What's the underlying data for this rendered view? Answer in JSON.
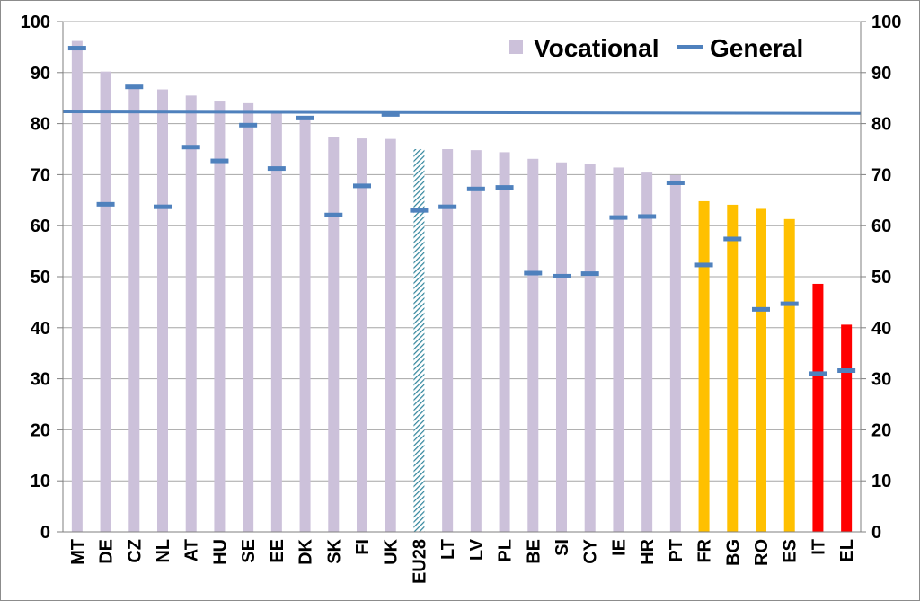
{
  "chart_data": {
    "type": "bar",
    "categories": [
      "MT",
      "DE",
      "CZ",
      "NL",
      "AT",
      "HU",
      "SE",
      "EE",
      "DK",
      "SK",
      "FI",
      "UK",
      "EU28",
      "LT",
      "LV",
      "PL",
      "BE",
      "SI",
      "CY",
      "IE",
      "HR",
      "PT",
      "FR",
      "BG",
      "RO",
      "ES",
      "IT",
      "EL"
    ],
    "series": [
      {
        "name": "Vocational",
        "kind": "bar",
        "values": [
          96.2,
          90.2,
          87.0,
          86.7,
          85.5,
          84.5,
          84.0,
          82.3,
          81.0,
          77.3,
          77.1,
          77.0,
          75.0,
          75.0,
          74.8,
          74.4,
          73.1,
          72.4,
          72.1,
          71.4,
          70.4,
          69.9,
          64.8,
          64.1,
          63.3,
          61.3,
          48.6,
          40.6
        ],
        "colors": [
          "#ccc1da",
          "#ccc1da",
          "#ccc1da",
          "#ccc1da",
          "#ccc1da",
          "#ccc1da",
          "#ccc1da",
          "#ccc1da",
          "#ccc1da",
          "#ccc1da",
          "#ccc1da",
          "#ccc1da",
          "#31859c",
          "#ccc1da",
          "#ccc1da",
          "#ccc1da",
          "#ccc1da",
          "#ccc1da",
          "#ccc1da",
          "#ccc1da",
          "#ccc1da",
          "#ccc1da",
          "#ffc000",
          "#ffc000",
          "#ffc000",
          "#ffc000",
          "#ff0000",
          "#ff0000"
        ],
        "hatched": [
          false,
          false,
          false,
          false,
          false,
          false,
          false,
          false,
          false,
          false,
          false,
          false,
          true,
          false,
          false,
          false,
          false,
          false,
          false,
          false,
          false,
          false,
          false,
          false,
          false,
          false,
          false,
          false
        ]
      },
      {
        "name": "General",
        "kind": "marker",
        "values": [
          94.8,
          64.2,
          87.2,
          63.7,
          75.4,
          72.7,
          79.7,
          71.2,
          81.1,
          62.1,
          67.8,
          81.8,
          63.0,
          63.7,
          67.2,
          67.5,
          50.7,
          50.1,
          50.6,
          61.6,
          61.8,
          68.4,
          52.3,
          57.4,
          43.6,
          44.7,
          31.0,
          31.6
        ],
        "color": "#4f81bd"
      }
    ],
    "reference_line": {
      "from": 82.3,
      "to": 82.0,
      "color": "#4f81bd"
    },
    "ylim": [
      0,
      100
    ],
    "yticks": [
      0,
      10,
      20,
      30,
      40,
      50,
      60,
      70,
      80,
      90,
      100
    ],
    "grid": true,
    "legend_position": "top-right",
    "title": "",
    "xlabel": "",
    "ylabel": ""
  },
  "legend": {
    "vocational_label": "Vocational",
    "general_label": "General",
    "vocational_color": "#ccc1da",
    "general_color": "#4f81bd"
  }
}
